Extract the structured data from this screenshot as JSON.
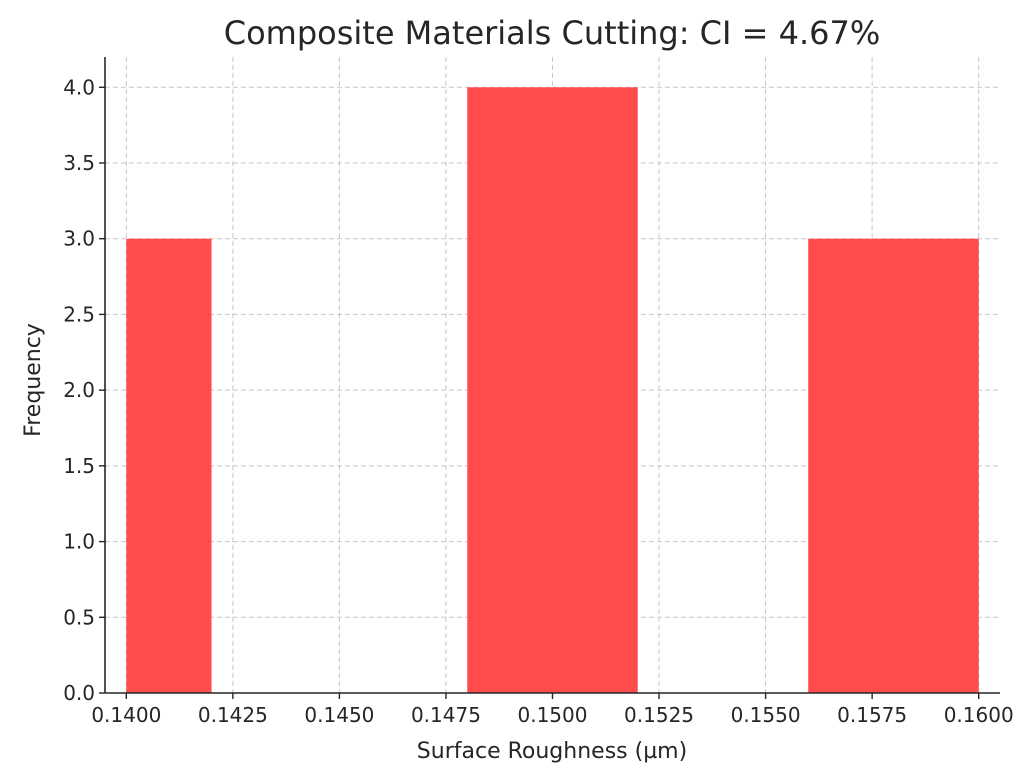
{
  "chart_data": {
    "type": "bar",
    "title": "Composite Materials Cutting: CI = 4.67%",
    "xlabel": "Surface Roughness (µm)",
    "ylabel": "Frequency",
    "xlim": [
      0.1395,
      0.1605
    ],
    "ylim": [
      0,
      4.2
    ],
    "xticks": [
      0.14,
      0.1425,
      0.145,
      0.1475,
      0.15,
      0.1525,
      0.155,
      0.1575,
      0.16
    ],
    "xtick_labels": [
      "0.1400",
      "0.1425",
      "0.1450",
      "0.1475",
      "0.1500",
      "0.1525",
      "0.1550",
      "0.1575",
      "0.1600"
    ],
    "yticks": [
      0,
      0.5,
      1,
      1.5,
      2,
      2.5,
      3,
      3.5,
      4
    ],
    "ytick_labels": [
      "0.0",
      "0.5",
      "1.0",
      "1.5",
      "2.0",
      "2.5",
      "3.0",
      "3.5",
      "4.0"
    ],
    "bars": [
      {
        "x0": 0.14,
        "x1": 0.142,
        "value": 3
      },
      {
        "x0": 0.144,
        "x1": 0.146,
        "value": 0
      },
      {
        "x0": 0.148,
        "x1": 0.152,
        "value": 4
      },
      {
        "x0": 0.156,
        "x1": 0.16,
        "value": 3
      }
    ],
    "bar_color": "#ff4b4b",
    "grid": true
  }
}
